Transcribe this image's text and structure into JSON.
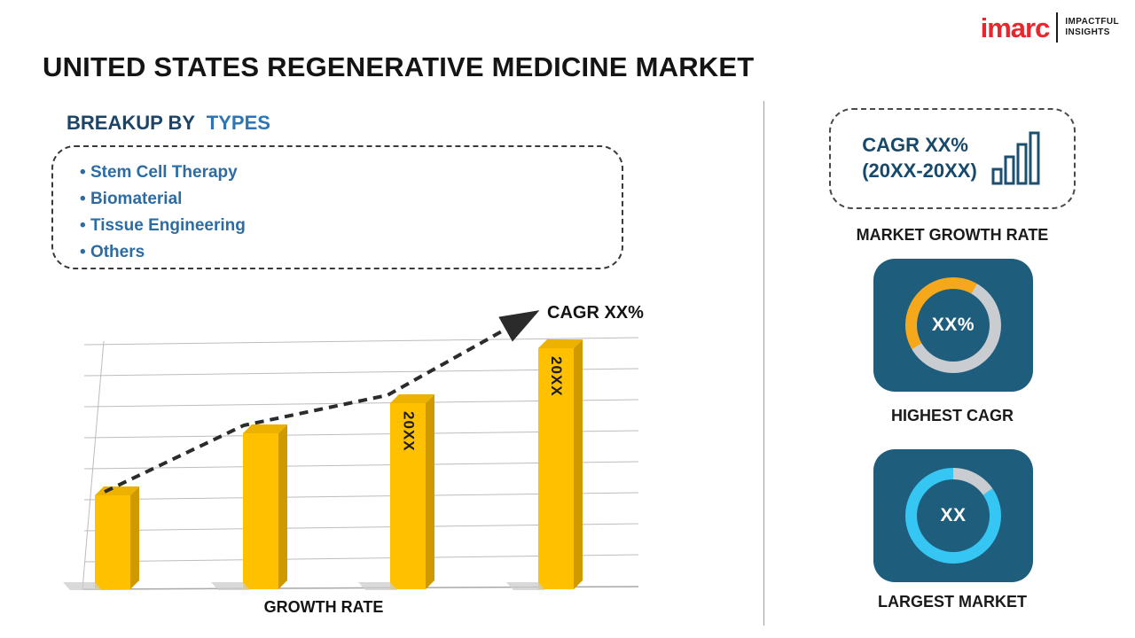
{
  "header": {
    "title": "UNITED STATES REGENERATIVE MEDICINE MARKET",
    "logo": {
      "brand": "imarc",
      "tagline_line1": "IMPACTFUL",
      "tagline_line2": "INSIGHTS"
    }
  },
  "breakup": {
    "heading_prefix": "BREAKUP BY",
    "heading_highlight": "TYPES",
    "items": [
      "Stem Cell Therapy",
      "Biomaterial",
      "Tissue Engineering",
      "Others"
    ]
  },
  "chart_data": {
    "type": "bar",
    "categories": [
      "",
      "",
      "20XX",
      "20XX"
    ],
    "values": [
      38,
      63,
      75,
      97
    ],
    "bar_labels": [
      "",
      "",
      "20XX",
      "20XX"
    ],
    "ylim": [
      0,
      100
    ],
    "xlabel": "GROWTH RATE",
    "trend_label": "CAGR XX%",
    "bar_color": "#FFC000",
    "grid": true,
    "legend": false,
    "trend": "dashed rising arrow over bar tops"
  },
  "sidebar": {
    "cagr_card": {
      "line1": "CAGR XX%",
      "line2": "(20XX-20XX)"
    },
    "market_growth_rate_label": "MARKET GROWTH RATE",
    "highest_cagr": {
      "value": "XX%",
      "label": "HIGHEST CAGR",
      "arc_color": "#F5A81C",
      "arc_start_deg": 240,
      "arc_sweep_deg": 150
    },
    "largest_market": {
      "value": "XX",
      "label": "LARGEST MARKET",
      "arc_color": "#35C6F4",
      "arc_start_deg": 55,
      "arc_sweep_deg": 305
    }
  },
  "colors": {
    "accent_navy": "#1F5D7D",
    "bar_yellow": "#FFC000",
    "text_blue": "#2D6CA3",
    "heading_navy": "#1C4468",
    "heading_blue": "#2E75B5",
    "logo_red": "#E8262D",
    "donut_track": "#C9CDD2"
  }
}
